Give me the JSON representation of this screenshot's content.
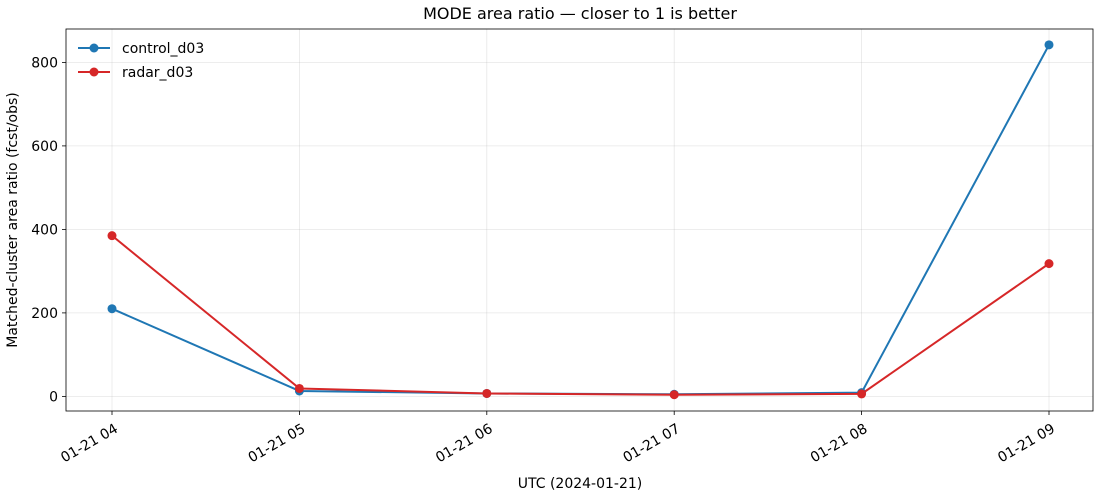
{
  "chart_data": {
    "type": "line",
    "title": "MODE area ratio — closer to 1 is better",
    "xlabel": "UTC (2024-01-21)",
    "ylabel": "Matched-cluster area ratio (fcst/obs)",
    "x": [
      "01-21 04",
      "01-21 05",
      "01-21 06",
      "01-21 07",
      "01-21 08",
      "01-21 09"
    ],
    "ylim": [
      -35,
      880
    ],
    "yticks": [
      0,
      200,
      400,
      600,
      800
    ],
    "grid": true,
    "legend_position": "top-left",
    "series": [
      {
        "name": "control_d03",
        "color": "#1f77b4",
        "values": [
          210,
          13,
          7,
          5,
          9,
          842
        ]
      },
      {
        "name": "radar_d03",
        "color": "#d62728",
        "values": [
          385,
          19,
          7,
          4,
          6,
          318
        ]
      }
    ]
  }
}
